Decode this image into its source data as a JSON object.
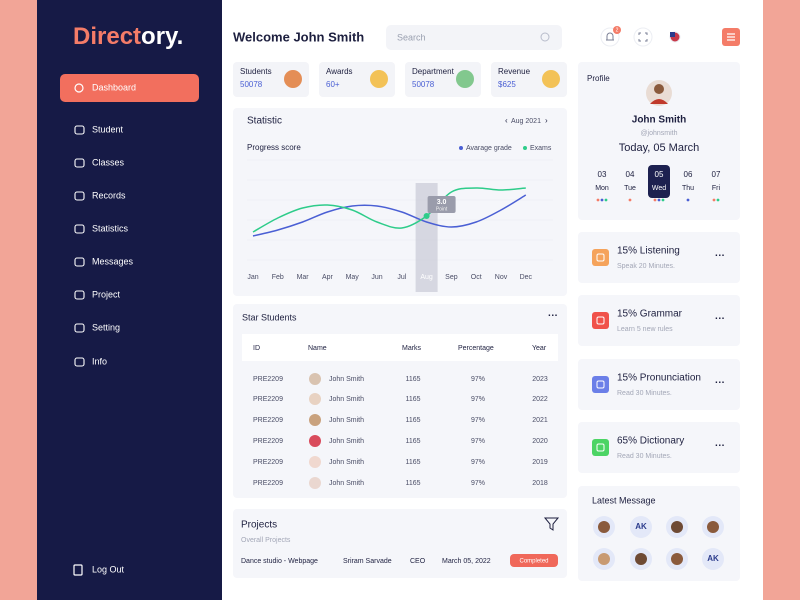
{
  "brand": {
    "accent": "Direct",
    "rest": "ory."
  },
  "nav": {
    "items": [
      "Dashboard",
      "Student",
      "Classes",
      "Records",
      "Statistics",
      "Messages",
      "Project",
      "Setting",
      "Info"
    ],
    "logout": "Log Out"
  },
  "header": {
    "welcome": "Welcome John Smith",
    "search": "Search",
    "notifications": "2"
  },
  "stats": [
    {
      "label": "Students",
      "value": "50078"
    },
    {
      "label": "Awards",
      "value": "60+"
    },
    {
      "label": "Department",
      "value": "50078"
    },
    {
      "label": "Revenue",
      "value": "$625"
    }
  ],
  "statistic": {
    "title": "Statistic",
    "period": "Aug 2021",
    "subtitle": "Progress score",
    "chart": {
      "type": "line",
      "categories": [
        "Jan",
        "Feb",
        "Mar",
        "Apr",
        "May",
        "Jun",
        "Jul",
        "Aug",
        "Sep",
        "Oct",
        "Nov",
        "Dec"
      ],
      "series": [
        {
          "name": "Avarage grade",
          "color": "#4a5fd4",
          "values": [
            24,
            30,
            38,
            48,
            54,
            54,
            48,
            38,
            33,
            38,
            50,
            65
          ]
        },
        {
          "name": "Exams",
          "color": "#2ecc8a",
          "values": [
            28,
            42,
            52,
            55,
            50,
            38,
            32,
            44,
            68,
            72,
            70,
            72
          ]
        }
      ],
      "ylim": [
        0,
        100
      ],
      "grid": true,
      "tooltip": {
        "value": "3.0",
        "label": "Point"
      }
    }
  },
  "star_students": {
    "title": "Star Students",
    "columns": [
      "ID",
      "Name",
      "Marks",
      "Percentage",
      "Year"
    ],
    "rows": [
      [
        "PRE2209",
        "John Smith",
        "1165",
        "97%",
        "2023"
      ],
      [
        "PRE2209",
        "John Smith",
        "1165",
        "97%",
        "2022"
      ],
      [
        "PRE2209",
        "John Smith",
        "1165",
        "97%",
        "2021"
      ],
      [
        "PRE2209",
        "John Smith",
        "1165",
        "97%",
        "2020"
      ],
      [
        "PRE2209",
        "John Smith",
        "1165",
        "97%",
        "2019"
      ],
      [
        "PRE2209",
        "John Smith",
        "1165",
        "97%",
        "2018"
      ]
    ]
  },
  "projects": {
    "title": "Projects",
    "subtitle": "Overall Projects",
    "row": [
      "Dance studio - Webpage",
      "Sriram Sarvade",
      "CEO",
      "March 05, 2022"
    ],
    "status": "Completed"
  },
  "profile": {
    "title": "Profile",
    "name": "John Smith",
    "handle": "@johnsmith",
    "date": "Today, 05 March",
    "days": [
      {
        "num": "03",
        "day": "Mon"
      },
      {
        "num": "04",
        "day": "Tue"
      },
      {
        "num": "05",
        "day": "Wed"
      },
      {
        "num": "06",
        "day": "Thu"
      },
      {
        "num": "07",
        "day": "Fri"
      }
    ]
  },
  "courses": [
    {
      "title": "15% Listening",
      "subtitle": "Speak 20 Minutes."
    },
    {
      "title": "15% Grammar",
      "subtitle": "Learn 5 new rules"
    },
    {
      "title": "15% Pronunciation",
      "subtitle": "Read 30 Minutes."
    },
    {
      "title": "65% Dictionary",
      "subtitle": "Read 30 Minutes."
    }
  ],
  "messages": {
    "title": "Latest Message",
    "initials": [
      "AK",
      "AK"
    ]
  }
}
